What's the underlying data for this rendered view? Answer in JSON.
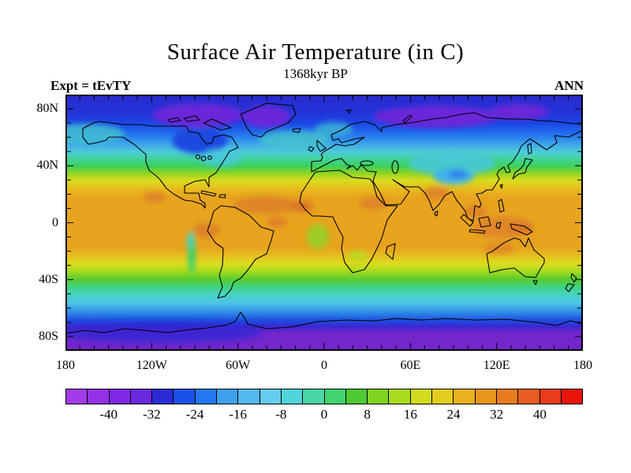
{
  "header": {
    "title": "Surface Air Temperature (in C)",
    "subtitle": "1368kyr BP",
    "experiment_label": "Expt = tEvTY",
    "season_label": "ANN"
  },
  "chart_data": {
    "type": "heatmap",
    "title": "Surface Air Temperature (in C)",
    "subtitle": "1368kyr BP",
    "experiment": "tEvTY",
    "season": "ANN",
    "units": "degrees C",
    "projection": "equirectangular world map, longitude -180 to 180, latitude -90 to 90",
    "grid": false,
    "x_axis": {
      "tick_labels": [
        "180",
        "120W",
        "60W",
        "0",
        "60E",
        "120E",
        "180"
      ],
      "tick_lons": [
        -180,
        -120,
        -60,
        0,
        60,
        120,
        180
      ],
      "minor_tick_step_deg": 10
    },
    "y_axis": {
      "tick_labels": [
        "80N",
        "40N",
        "0",
        "40S",
        "80S"
      ],
      "tick_lats": [
        80,
        40,
        0,
        -40,
        -80
      ],
      "minor_tick_step_deg": 10
    },
    "colorbar": {
      "position": "bottom",
      "min_c": -48,
      "max_c": 48,
      "interval_c": 4,
      "tick_labels": [
        "-40",
        "-32",
        "-24",
        "-16",
        "-8",
        "0",
        "8",
        "16",
        "24",
        "32",
        "40"
      ],
      "colors": [
        "#A23CE8",
        "#9530E8",
        "#7F28E8",
        "#6A28E0",
        "#2B2BD6",
        "#1A50E8",
        "#2377F0",
        "#3FA0F0",
        "#55B8F0",
        "#65CCEE",
        "#4FD6DC",
        "#47D6A8",
        "#3FD46E",
        "#4CCA34",
        "#7ED321",
        "#A9DA1E",
        "#D2DC1E",
        "#E2CD1E",
        "#E8B11E",
        "#E8951E",
        "#E87B1E",
        "#E85C22",
        "#E83C1C",
        "#E81508"
      ]
    },
    "zonal_mean_profile_c": [
      {
        "lat": 90,
        "temp": -30
      },
      {
        "lat": 80,
        "temp": -30
      },
      {
        "lat": 70,
        "temp": -24
      },
      {
        "lat": 60,
        "temp": -14
      },
      {
        "lat": 55,
        "temp": -9
      },
      {
        "lat": 50,
        "temp": -5
      },
      {
        "lat": 45,
        "temp": -1
      },
      {
        "lat": 40,
        "temp": 3
      },
      {
        "lat": 35,
        "temp": 10
      },
      {
        "lat": 30,
        "temp": 17
      },
      {
        "lat": 25,
        "temp": 21
      },
      {
        "lat": 20,
        "temp": 24
      },
      {
        "lat": 10,
        "temp": 26
      },
      {
        "lat": 0,
        "temp": 26
      },
      {
        "lat": -10,
        "temp": 26
      },
      {
        "lat": -20,
        "temp": 24
      },
      {
        "lat": -25,
        "temp": 21
      },
      {
        "lat": -30,
        "temp": 17
      },
      {
        "lat": -35,
        "temp": 12
      },
      {
        "lat": -40,
        "temp": 7
      },
      {
        "lat": -45,
        "temp": 3
      },
      {
        "lat": -50,
        "temp": -1
      },
      {
        "lat": -55,
        "temp": -5
      },
      {
        "lat": -60,
        "temp": -10
      },
      {
        "lat": -65,
        "temp": -15
      },
      {
        "lat": -70,
        "temp": -25
      },
      {
        "lat": -75,
        "temp": -34
      },
      {
        "lat": -80,
        "temp": -38
      },
      {
        "lat": -90,
        "temp": -38
      }
    ],
    "regional_features_c": [
      {
        "region": "Canadian Arctic",
        "approx_temp": -38
      },
      {
        "region": "Greenland",
        "approx_temp": -38
      },
      {
        "region": "Central Siberia",
        "approx_temp": -38
      },
      {
        "region": "Hudson Bay / eastern Canada",
        "approx_temp": -26
      },
      {
        "region": "Tibetan Plateau",
        "approx_temp": -8
      },
      {
        "region": "North Atlantic",
        "approx_temp": -4
      },
      {
        "region": "North Pacific",
        "approx_temp": -4
      },
      {
        "region": "Sahara / Sahel",
        "approx_temp": 30
      },
      {
        "region": "Arabia",
        "approx_temp": 30
      },
      {
        "region": "India",
        "approx_temp": 30
      },
      {
        "region": "Indochina",
        "approx_temp": 30
      },
      {
        "region": "Maritime Continent / New Guinea",
        "approx_temp": 30
      },
      {
        "region": "Amazon basin",
        "approx_temp": 30
      },
      {
        "region": "Congo basin",
        "approx_temp": 30
      },
      {
        "region": "Mexico",
        "approx_temp": 30
      },
      {
        "region": "Northwest Australia",
        "approx_temp": 28
      },
      {
        "region": "Andes",
        "approx_temp": 6
      },
      {
        "region": "East African highlands",
        "approx_temp": 14
      },
      {
        "region": "Antarctica interior",
        "approx_temp": -40
      }
    ]
  }
}
